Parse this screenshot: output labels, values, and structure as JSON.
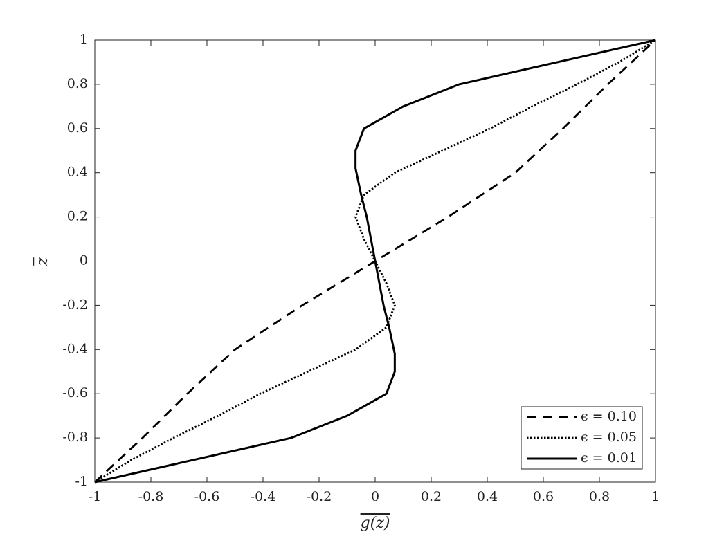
{
  "chart_data": {
    "type": "line",
    "xlabel": "g(z)",
    "ylabel": "z",
    "xlim": [
      -1,
      1
    ],
    "ylim": [
      -1,
      1
    ],
    "xticks": [
      -1,
      -0.8,
      -0.6,
      -0.4,
      -0.2,
      0,
      0.2,
      0.4,
      0.6,
      0.8,
      1
    ],
    "yticks": [
      -1,
      -0.8,
      -0.6,
      -0.4,
      -0.2,
      0,
      0.2,
      0.4,
      0.6,
      0.8,
      1
    ],
    "legend": "lower right",
    "series": [
      {
        "name": "ϵ = 0.10",
        "color": "#000000",
        "line_style": "dashed",
        "x": [
          -1,
          -0.83,
          -0.67,
          -0.5,
          -0.26,
          0,
          0.26,
          0.5,
          0.67,
          0.83,
          1
        ],
        "values": [
          -1,
          -0.8,
          -0.6,
          -0.4,
          -0.2,
          0,
          0.2,
          0.4,
          0.6,
          0.8,
          1
        ]
      },
      {
        "name": "ϵ = 0.05",
        "color": "#000000",
        "line_style": "dotted",
        "x": [
          -1,
          -0.87,
          -0.72,
          -0.56,
          -0.41,
          -0.24,
          -0.07,
          0.04,
          0.07,
          0.04,
          0,
          -0.04,
          -0.07,
          -0.04,
          0.07,
          0.24,
          0.41,
          0.56,
          0.72,
          0.87,
          1
        ],
        "values": [
          -1,
          -0.9,
          -0.8,
          -0.7,
          -0.6,
          -0.5,
          -0.4,
          -0.3,
          -0.2,
          -0.1,
          0,
          0.1,
          0.2,
          0.3,
          0.4,
          0.5,
          0.6,
          0.7,
          0.8,
          0.9,
          1
        ]
      },
      {
        "name": "ϵ = 0.01",
        "color": "#000000",
        "line_style": "solid",
        "x": [
          -1,
          -0.65,
          -0.3,
          -0.1,
          0.04,
          0.07,
          0.07,
          0.05,
          0.03,
          0.015,
          0,
          -0.015,
          -0.03,
          -0.05,
          -0.07,
          -0.07,
          -0.04,
          0.1,
          0.3,
          0.65,
          1
        ],
        "values": [
          -1,
          -0.9,
          -0.8,
          -0.7,
          -0.6,
          -0.5,
          -0.42,
          -0.3,
          -0.2,
          -0.1,
          0,
          0.1,
          0.2,
          0.3,
          0.42,
          0.5,
          0.6,
          0.7,
          0.8,
          0.9,
          1
        ]
      }
    ]
  }
}
